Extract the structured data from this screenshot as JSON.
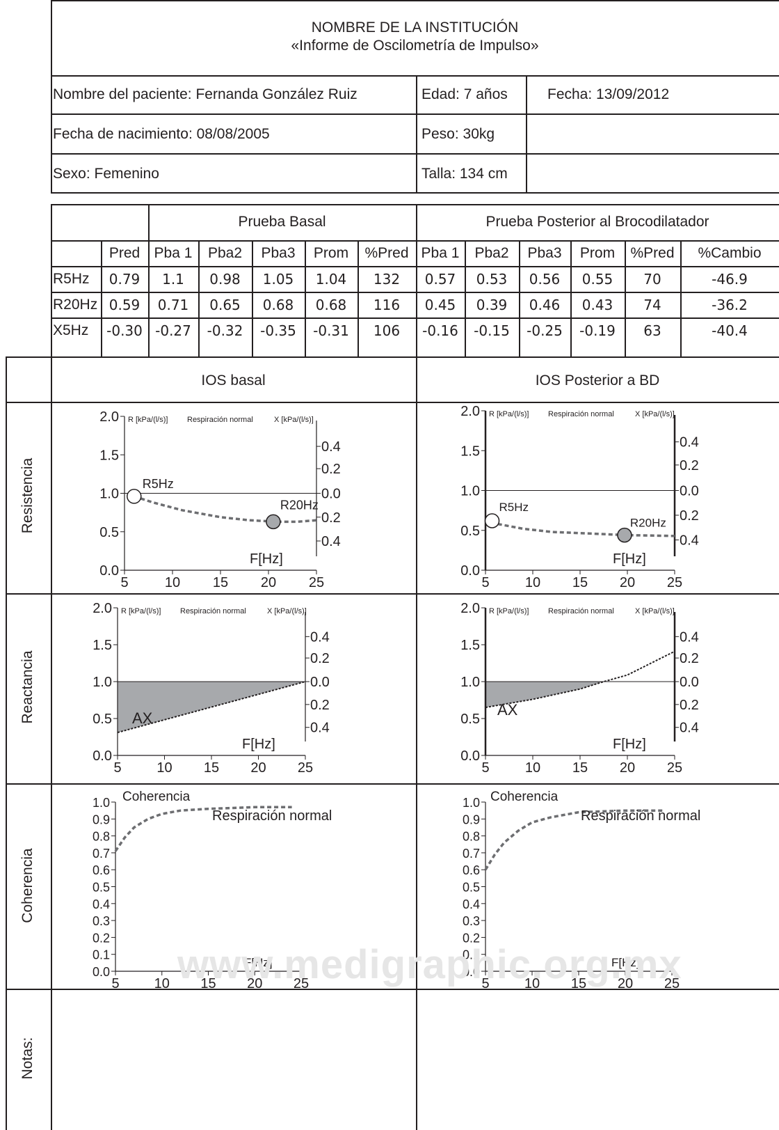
{
  "header": {
    "institution": "NOMBRE DE LA INSTITUCIÓN",
    "report_title": "«Informe de Oscilometría de Impulso»"
  },
  "patient": {
    "name": "Nombre del paciente: Fernanda González Ruiz",
    "age": "Edad: 7 años",
    "date": "Fecha: 13/09/2012",
    "birth": "Fecha de nacimiento: 08/08/2005",
    "weight": "Peso: 30kg",
    "sex": "Sexo: Femenino",
    "height": "Talla: 134 cm"
  },
  "results_table": {
    "group_basal": "Prueba Basal",
    "group_post": "Prueba Posterior al Brocodilatador",
    "columns": [
      "",
      "Pred",
      "Pba 1",
      "Pba2",
      "Pba3",
      "Prom",
      "%Pred",
      "Pba 1",
      "Pba2",
      "Pba3",
      "Prom",
      "%Pred",
      "%Cambio"
    ],
    "rows": [
      [
        "R5Hz",
        "0.79",
        "1.1",
        "0.98",
        "1.05",
        "1.04",
        "132",
        "0.57",
        "0.53",
        "0.56",
        "0.55",
        "70",
        "-46.9"
      ],
      [
        "R20Hz",
        "0.59",
        "0.71",
        "0.65",
        "0.68",
        "0.68",
        "116",
        "0.45",
        "0.39",
        "0.46",
        "0.43",
        "74",
        "-36.2"
      ],
      [
        "X5Hz",
        "-0.30",
        "-0.27",
        "-0.32",
        "-0.35",
        "-0.31",
        "106",
        "-0.16",
        "-0.15",
        "-0.25",
        "-0.19",
        "63",
        "-40.4"
      ]
    ]
  },
  "charts_section": {
    "col_basal": "IOS basal",
    "col_post": "IOS Posterior a BD",
    "row_resistencia": "Resistencia",
    "row_reactancia": "Reactancia",
    "row_coherencia": "Coherencia",
    "row_notas": "Notas:"
  },
  "chart_text": {
    "r_axis": "R [kPa/(l/s)]",
    "normal": "Respiración normal",
    "x_axis": "X [kPa/(l/s)]",
    "f_axis": "F[Hz]",
    "coh_label": "Coherencia",
    "coh_normal": "Respiración normal",
    "r5_label": "R5Hz",
    "r20_label": "R20Hz",
    "ax_label": "AX"
  },
  "watermark": "www.medigraphic.org.mx",
  "chart_data": [
    {
      "id": "res-basal",
      "type": "line",
      "x_ticks": [
        "5",
        "10",
        "15",
        "20",
        "25"
      ],
      "y_ticks": [
        "0.0",
        "0.5",
        "1.0",
        "1.5",
        "2.0"
      ],
      "y2_ticks": [
        "0.4",
        "0.2",
        "0.0",
        "0.2",
        "0.4"
      ],
      "xlim": [
        5,
        25
      ],
      "ylim": [
        0,
        2
      ],
      "r5": [
        6,
        0.96
      ],
      "r20": [
        20.5,
        0.63
      ],
      "curve": [
        [
          6,
          0.96
        ],
        [
          8,
          0.88
        ],
        [
          11,
          0.78
        ],
        [
          15,
          0.69
        ],
        [
          18,
          0.65
        ],
        [
          21,
          0.63
        ],
        [
          23,
          0.63
        ],
        [
          25,
          0.65
        ]
      ],
      "baseline": 1.0
    },
    {
      "id": "res-post",
      "type": "line",
      "x_ticks": [
        "5",
        "10",
        "15",
        "20",
        "25"
      ],
      "y_ticks": [
        "0.0",
        "0.5",
        "1.0",
        "1.5",
        "2.0"
      ],
      "y2_ticks": [
        "0.4",
        "0.2",
        "0.0",
        "0.2",
        "0.4"
      ],
      "xlim": [
        5,
        25
      ],
      "ylim": [
        0,
        2
      ],
      "r5": [
        5.7,
        0.62
      ],
      "r20": [
        19.7,
        0.44
      ],
      "curve": [
        [
          6.3,
          0.58
        ],
        [
          9,
          0.52
        ],
        [
          12,
          0.48
        ],
        [
          16,
          0.46
        ],
        [
          20,
          0.44
        ],
        [
          25,
          0.43
        ]
      ],
      "baseline": 1.0
    },
    {
      "id": "reac-basal",
      "type": "area",
      "x_ticks": [
        "5",
        "10",
        "15",
        "20",
        "25"
      ],
      "y_ticks": [
        "0.0",
        "0.5",
        "1.0",
        "1.5",
        "2.0"
      ],
      "y2_ticks": [
        "0.4",
        "0.2",
        "0.0",
        "0.2",
        "0.4"
      ],
      "xlim": [
        5,
        25
      ],
      "ylim": [
        0,
        2
      ],
      "curve": [
        [
          5,
          0.31
        ],
        [
          25,
          1.0
        ]
      ],
      "baseline": 1.0,
      "fill_until": 25
    },
    {
      "id": "reac-post",
      "type": "area",
      "x_ticks": [
        "5",
        "10",
        "15",
        "20",
        "25"
      ],
      "y_ticks": [
        "0.0",
        "0.5",
        "1.0",
        "1.5",
        "2.0"
      ],
      "y2_ticks": [
        "0.4",
        "0.2",
        "0.0",
        "0.2",
        "0.4"
      ],
      "xlim": [
        5,
        25
      ],
      "ylim": [
        0,
        2
      ],
      "curve": [
        [
          5,
          0.65
        ],
        [
          10,
          0.76
        ],
        [
          15,
          0.9
        ],
        [
          17.5,
          1.0
        ],
        [
          20,
          1.09
        ],
        [
          25,
          1.41
        ]
      ],
      "baseline": 1.0,
      "fill_until": 17.5
    },
    {
      "id": "coh-basal",
      "type": "line",
      "x_ticks": [
        "5",
        "10",
        "15",
        "20",
        "25"
      ],
      "y_ticks": [
        "0.0",
        "0.1",
        "0.2",
        "0.3",
        "0.4",
        "0.5",
        "0.6",
        "0.7",
        "0.8",
        "0.9",
        "1.0"
      ],
      "xlim": [
        5,
        25
      ],
      "ylim": [
        0,
        1
      ],
      "curve": [
        [
          5,
          0.71
        ],
        [
          6,
          0.79
        ],
        [
          7,
          0.85
        ],
        [
          8.5,
          0.9
        ],
        [
          10,
          0.93
        ],
        [
          12,
          0.95
        ],
        [
          15,
          0.96
        ],
        [
          20,
          0.97
        ],
        [
          24,
          0.97
        ]
      ]
    },
    {
      "id": "coh-post",
      "type": "line",
      "x_ticks": [
        "5",
        "10",
        "15",
        "20",
        "25"
      ],
      "y_ticks": [
        "0.0",
        "0.1",
        "0.2",
        "0.3",
        "0.4",
        "0.5",
        "0.6",
        "0.7",
        "0.8",
        "0.9",
        "1.0"
      ],
      "xlim": [
        5,
        25
      ],
      "ylim": [
        0,
        1
      ],
      "curve": [
        [
          5,
          0.6
        ],
        [
          6,
          0.69
        ],
        [
          7,
          0.76
        ],
        [
          8.5,
          0.83
        ],
        [
          10,
          0.88
        ],
        [
          12,
          0.91
        ],
        [
          15,
          0.94
        ],
        [
          20,
          0.95
        ],
        [
          24,
          0.95
        ]
      ]
    }
  ]
}
